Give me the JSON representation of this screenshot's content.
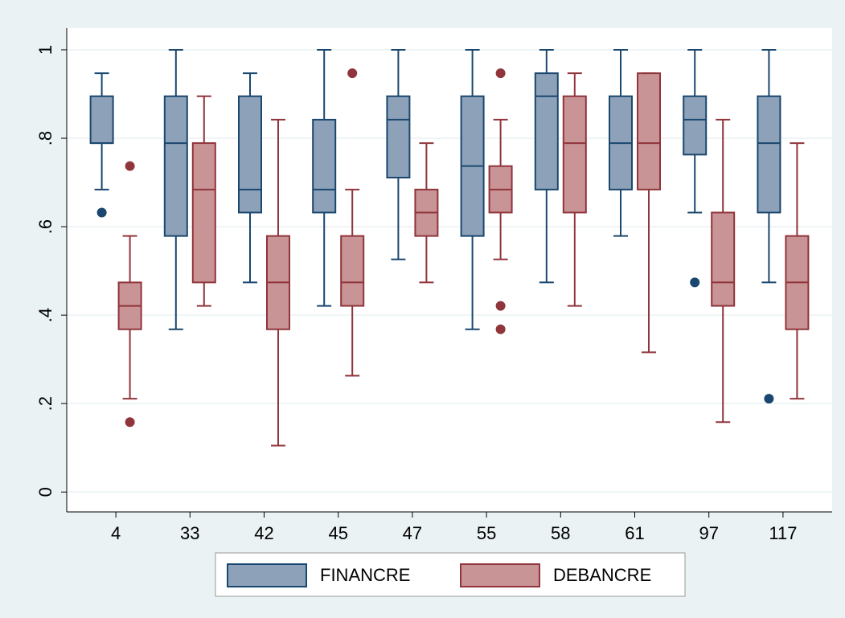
{
  "chart_data": {
    "type": "box",
    "categories": [
      "4",
      "33",
      "42",
      "45",
      "47",
      "55",
      "58",
      "61",
      "97",
      "117"
    ],
    "ylim": [
      -0.045,
      1.049
    ],
    "yticks": [
      0,
      {
        "value": 0.2,
        "label": ".2"
      },
      {
        "value": 0.4,
        "label": ".4"
      },
      {
        "value": 0.6,
        "label": ".6"
      },
      {
        "value": 0.8,
        "label": ".8"
      },
      1
    ],
    "grid": true,
    "legend": "bottom",
    "series": [
      {
        "name": "FINANCRE",
        "color": "#8da2b9",
        "edge": "#1a476f",
        "values": [
          {
            "min": 0.684,
            "q1": 0.789,
            "median": 0.789,
            "q3": 0.895,
            "max": 0.947,
            "outliers": [
              0.632
            ]
          },
          {
            "min": 0.368,
            "q1": 0.579,
            "median": 0.789,
            "q3": 0.895,
            "max": 1,
            "outliers": []
          },
          {
            "min": 0.474,
            "q1": 0.632,
            "median": 0.684,
            "q3": 0.895,
            "max": 0.947,
            "outliers": []
          },
          {
            "min": 0.421,
            "q1": 0.632,
            "median": 0.684,
            "q3": 0.842,
            "max": 1,
            "outliers": []
          },
          {
            "min": 0.526,
            "q1": 0.711,
            "median": 0.842,
            "q3": 0.895,
            "max": 1,
            "outliers": []
          },
          {
            "min": 0.368,
            "q1": 0.579,
            "median": 0.737,
            "q3": 0.895,
            "max": 1,
            "outliers": []
          },
          {
            "min": 0.474,
            "q1": 0.684,
            "median": 0.895,
            "q3": 0.947,
            "max": 1,
            "outliers": []
          },
          {
            "min": 0.579,
            "q1": 0.684,
            "median": 0.789,
            "q3": 0.895,
            "max": 1,
            "outliers": []
          },
          {
            "min": 0.632,
            "q1": 0.763,
            "median": 0.842,
            "q3": 0.895,
            "max": 1,
            "outliers": [
              0.474
            ]
          },
          {
            "min": 0.474,
            "q1": 0.632,
            "median": 0.789,
            "q3": 0.895,
            "max": 1,
            "outliers": [
              0.211
            ]
          }
        ]
      },
      {
        "name": "DEBANCRE",
        "color": "#c99496",
        "edge": "#90353b",
        "values": [
          {
            "min": 0.211,
            "q1": 0.368,
            "median": 0.421,
            "q3": 0.474,
            "max": 0.579,
            "outliers": [
              0.737,
              0.158
            ]
          },
          {
            "min": 0.421,
            "q1": 0.474,
            "median": 0.684,
            "q3": 0.789,
            "max": 0.895,
            "outliers": []
          },
          {
            "min": 0.105,
            "q1": 0.368,
            "median": 0.474,
            "q3": 0.579,
            "max": 0.842,
            "outliers": []
          },
          {
            "min": 0.263,
            "q1": 0.421,
            "median": 0.474,
            "q3": 0.579,
            "max": 0.684,
            "outliers": [
              0.947
            ]
          },
          {
            "min": 0.474,
            "q1": 0.579,
            "median": 0.632,
            "q3": 0.684,
            "max": 0.789,
            "outliers": []
          },
          {
            "min": 0.526,
            "q1": 0.632,
            "median": 0.684,
            "q3": 0.737,
            "max": 0.842,
            "outliers": [
              0.947,
              0.421,
              0.368
            ]
          },
          {
            "min": 0.421,
            "q1": 0.632,
            "median": 0.789,
            "q3": 0.895,
            "max": 0.947,
            "outliers": []
          },
          {
            "min": 0.316,
            "q1": 0.684,
            "median": 0.789,
            "q3": 0.947,
            "max": 0.947,
            "outliers": []
          },
          {
            "min": 0.158,
            "q1": 0.421,
            "median": 0.474,
            "q3": 0.632,
            "max": 0.842,
            "outliers": []
          },
          {
            "min": 0.211,
            "q1": 0.368,
            "median": 0.474,
            "q3": 0.579,
            "max": 0.789,
            "outliers": []
          }
        ]
      }
    ]
  }
}
